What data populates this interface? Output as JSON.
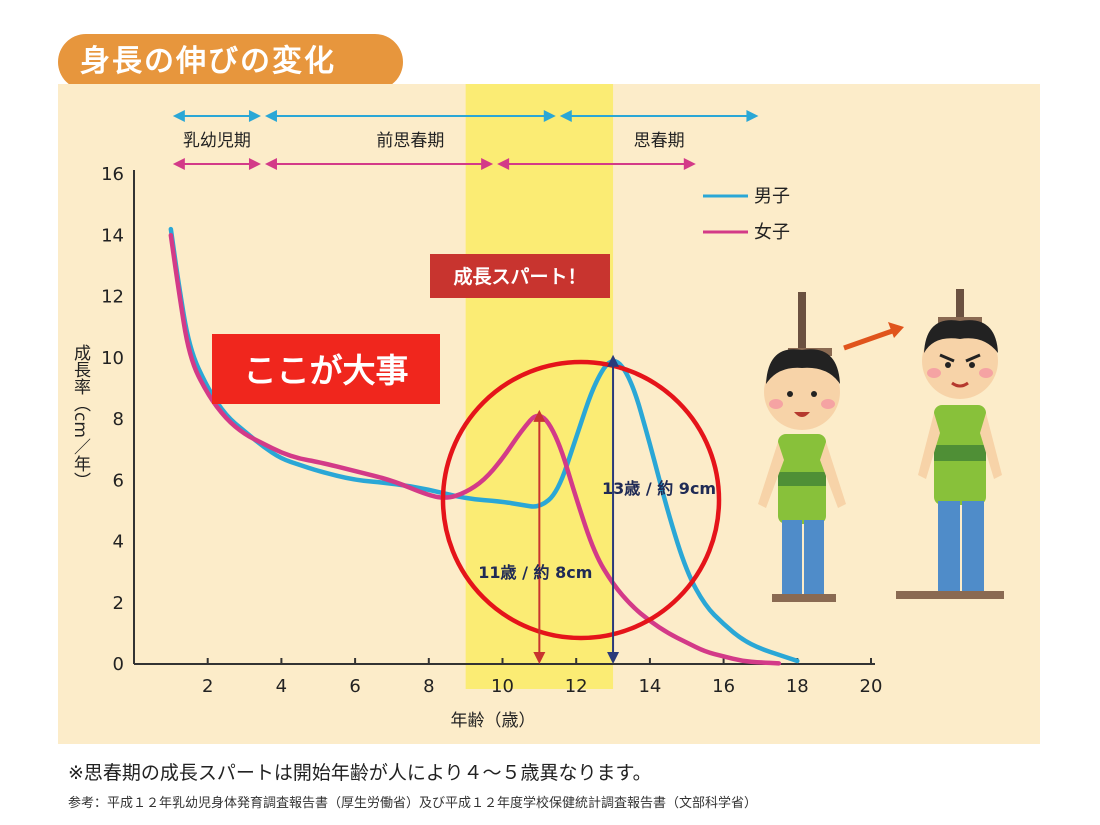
{
  "header": {
    "title": "身長の伸びの変化"
  },
  "chart_data": {
    "type": "line",
    "title": "",
    "xlabel": "年齢（歳）",
    "ylabel": "成長率（cm／年）",
    "xlim": [
      0,
      20
    ],
    "ylim": [
      0,
      16
    ],
    "xticks": [
      2,
      4,
      6,
      8,
      10,
      12,
      14,
      16,
      18,
      20
    ],
    "yticks": [
      0,
      2,
      4,
      6,
      8,
      10,
      12,
      14,
      16
    ],
    "grid": false,
    "legend_position": "top-right",
    "series": [
      {
        "name": "男子",
        "color": "#2aa7d6",
        "x": [
          1.0,
          1.2,
          1.5,
          2.0,
          2.5,
          3.0,
          3.5,
          4.0,
          4.5,
          5.0,
          6.0,
          7.0,
          8.0,
          9.0,
          10.0,
          10.5,
          11.0,
          11.5,
          12.0,
          12.5,
          13.0,
          13.5,
          14.0,
          14.5,
          15.0,
          15.5,
          16.0,
          16.5,
          17.0,
          17.5,
          18.0
        ],
        "y": [
          14.2,
          12.5,
          10.3,
          9.0,
          8.1,
          7.6,
          7.1,
          6.7,
          6.5,
          6.3,
          6.0,
          5.9,
          5.7,
          5.4,
          5.3,
          5.2,
          5.1,
          5.6,
          7.4,
          9.2,
          10.1,
          9.3,
          7.2,
          4.9,
          3.0,
          1.9,
          1.3,
          0.8,
          0.5,
          0.3,
          0.1
        ]
      },
      {
        "name": "女子",
        "color": "#d33a88",
        "x": [
          1.0,
          1.2,
          1.5,
          2.0,
          2.5,
          3.0,
          3.5,
          4.0,
          4.5,
          5.0,
          6.0,
          7.0,
          8.0,
          8.5,
          9.0,
          9.5,
          10.0,
          10.5,
          11.0,
          11.5,
          12.0,
          12.5,
          13.0,
          13.5,
          14.0,
          14.5,
          15.0,
          15.5,
          16.0,
          16.5,
          17.0,
          17.5
        ],
        "y": [
          14.0,
          12.3,
          10.0,
          8.8,
          8.0,
          7.5,
          7.2,
          6.9,
          6.7,
          6.6,
          6.3,
          6.0,
          5.5,
          5.4,
          5.6,
          6.0,
          6.7,
          7.6,
          8.3,
          7.4,
          5.4,
          3.6,
          2.6,
          1.9,
          1.4,
          1.0,
          0.7,
          0.4,
          0.25,
          0.1,
          0.05,
          0.02
        ]
      }
    ],
    "stages": {
      "boys": [
        {
          "label": "乳幼児期",
          "start": 1.0,
          "end": 3.5
        },
        {
          "label": "前思春期",
          "start": 3.5,
          "end": 11.5
        },
        {
          "label": "思春期",
          "start": 11.5,
          "end": 17.0
        }
      ],
      "girls": [
        {
          "start": 1.0,
          "end": 3.5
        },
        {
          "start": 3.5,
          "end": 9.8
        },
        {
          "start": 9.8,
          "end": 15.3
        }
      ]
    },
    "highlight_band": {
      "from": 9.0,
      "to": 13.0,
      "color": "#fbec74"
    },
    "annotations": {
      "spurt_label": "成長スパート！",
      "key_label": "ここが大事",
      "girls_peak_label": "11歳 / 約 8cm",
      "boys_peak_label": "13歳 / 約 9cm",
      "girls_peak_age": 11,
      "girls_peak_value": 8.3,
      "boys_peak_age": 13,
      "boys_peak_value": 10.1
    }
  },
  "footer": {
    "note": "※思春期の成長スパートは開始年齢が人により４〜５歳異なります。",
    "reference": "参考：平成１２年乳幼児身体発育調査報告書（厚生労働省）及び平成１２年度学校保健統計調査報告書（文部科学省）"
  }
}
